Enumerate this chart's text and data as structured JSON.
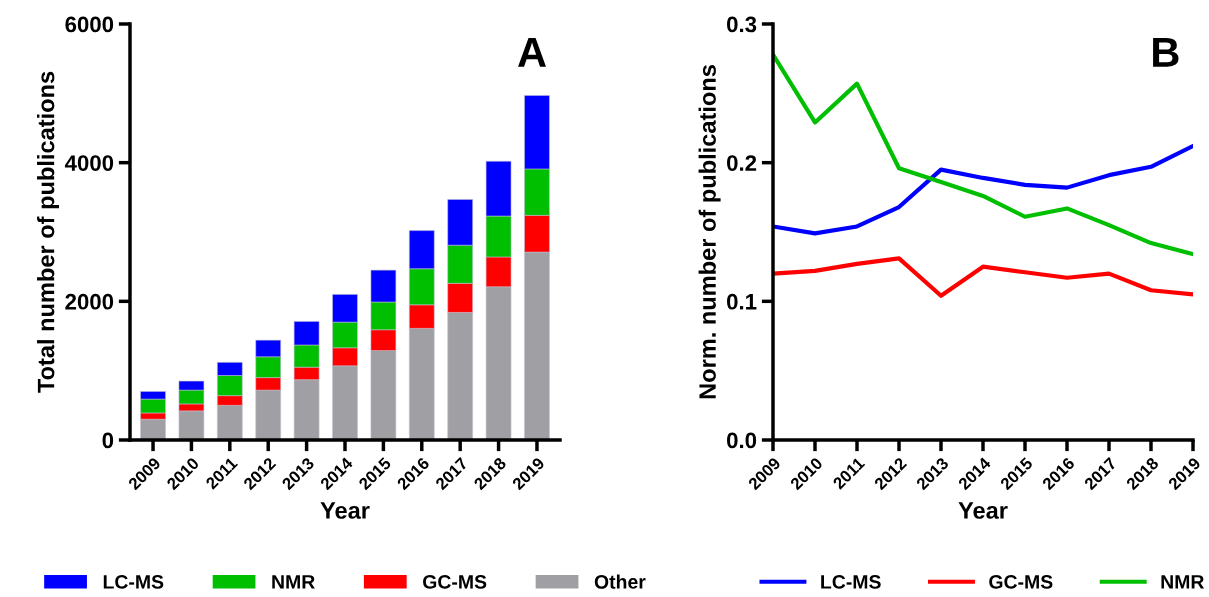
{
  "chart_data": [
    {
      "type": "bar",
      "stacked": true,
      "xlabel": "Year",
      "ylabel": "Total number of publications",
      "annotations": [
        "A"
      ],
      "categories": [
        "2009",
        "2010",
        "2011",
        "2012",
        "2013",
        "2014",
        "2015",
        "2016",
        "2017",
        "2018",
        "2019"
      ],
      "series": [
        {
          "name": "Other",
          "color": "#a0a0a4",
          "values": [
            300,
            420,
            500,
            720,
            870,
            1070,
            1290,
            1610,
            1840,
            2210,
            2710
          ]
        },
        {
          "name": "GC-MS",
          "color": "#ff0000",
          "values": [
            90,
            100,
            140,
            180,
            180,
            260,
            300,
            340,
            420,
            430,
            530
          ]
        },
        {
          "name": "NMR",
          "color": "#00bf00",
          "values": [
            200,
            200,
            290,
            300,
            320,
            370,
            400,
            520,
            550,
            590,
            670
          ]
        },
        {
          "name": "LC-MS",
          "color": "#0000ff",
          "values": [
            110,
            130,
            190,
            240,
            340,
            400,
            460,
            550,
            660,
            790,
            1060
          ]
        }
      ],
      "ylim": [
        0,
        6000
      ],
      "yticks": [
        0,
        2000,
        4000,
        6000
      ],
      "grid": false,
      "legend": "bottom"
    },
    {
      "type": "line",
      "xlabel": "Year",
      "ylabel": "Norm. number of publications",
      "annotations": [
        "B"
      ],
      "categories": [
        "2009",
        "2010",
        "2011",
        "2012",
        "2013",
        "2014",
        "2015",
        "2016",
        "2017",
        "2018",
        "2019"
      ],
      "series": [
        {
          "name": "LC-MS",
          "color": "#0000ff",
          "values": [
            0.154,
            0.149,
            0.154,
            0.168,
            0.195,
            0.189,
            0.184,
            0.182,
            0.191,
            0.197,
            0.212
          ]
        },
        {
          "name": "GC-MS",
          "color": "#ff0000",
          "values": [
            0.12,
            0.122,
            0.127,
            0.131,
            0.104,
            0.125,
            0.121,
            0.117,
            0.12,
            0.108,
            0.105
          ]
        },
        {
          "name": "NMR",
          "color": "#00bf00",
          "values": [
            0.278,
            0.229,
            0.257,
            0.196,
            0.186,
            0.176,
            0.161,
            0.167,
            0.155,
            0.142,
            0.134
          ]
        }
      ],
      "ylim": [
        0,
        0.3
      ],
      "yticks": [
        {
          "value": 0,
          "label": "0.0"
        },
        0.1,
        0.2,
        0.3
      ],
      "grid": false,
      "legend": "bottom",
      "marker": "none",
      "line_style": "solid"
    }
  ]
}
